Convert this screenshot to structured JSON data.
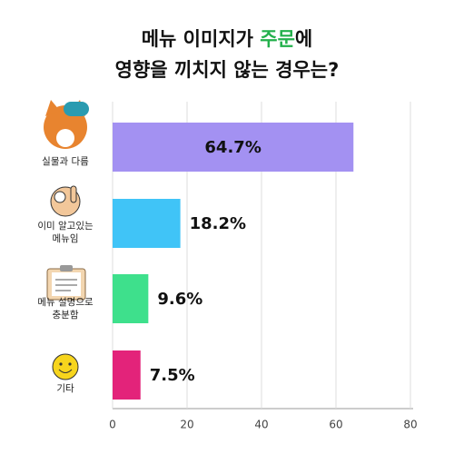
{
  "chart_data": {
    "type": "hbar",
    "title": [
      "메뉴 이미지가 ",
      "주문",
      "에",
      "영향을 끼치지 않는 경우는?"
    ],
    "highlight_color": "#22b04b",
    "categories": [
      "실물과 다름",
      "이미 알고있는\n메뉴임",
      "메뉴 설명으로\n충분함",
      "기타"
    ],
    "values": [
      64.7,
      18.2,
      9.6,
      7.5
    ],
    "value_labels": [
      "64.7%",
      "18.2%",
      "9.6%",
      "7.5%"
    ],
    "colors": [
      "#a391f2",
      "#40c4f7",
      "#3ee08c",
      "#e3237a"
    ],
    "xlim": [
      0,
      80
    ],
    "xticks": [
      0,
      20,
      40,
      60,
      80
    ],
    "grid": true
  }
}
